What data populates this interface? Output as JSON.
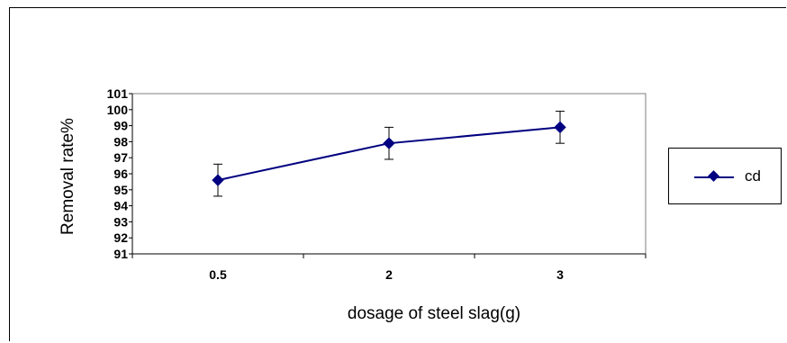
{
  "chart_data": {
    "type": "line",
    "xlabel": "dosage of steel slag(g)",
    "ylabel": "Removal rate%",
    "categories": [
      "0.5",
      "2",
      "3"
    ],
    "series": [
      {
        "name": "cd",
        "values": [
          95.6,
          97.9,
          98.9
        ],
        "error": [
          1.0,
          1.0,
          1.0
        ],
        "color": "#000080"
      }
    ],
    "ylim": [
      91,
      101
    ],
    "yticks": [
      "91",
      "92",
      "93",
      "94",
      "95",
      "96",
      "97",
      "98",
      "99",
      "100",
      "101"
    ],
    "grid": false,
    "legend": "right"
  }
}
